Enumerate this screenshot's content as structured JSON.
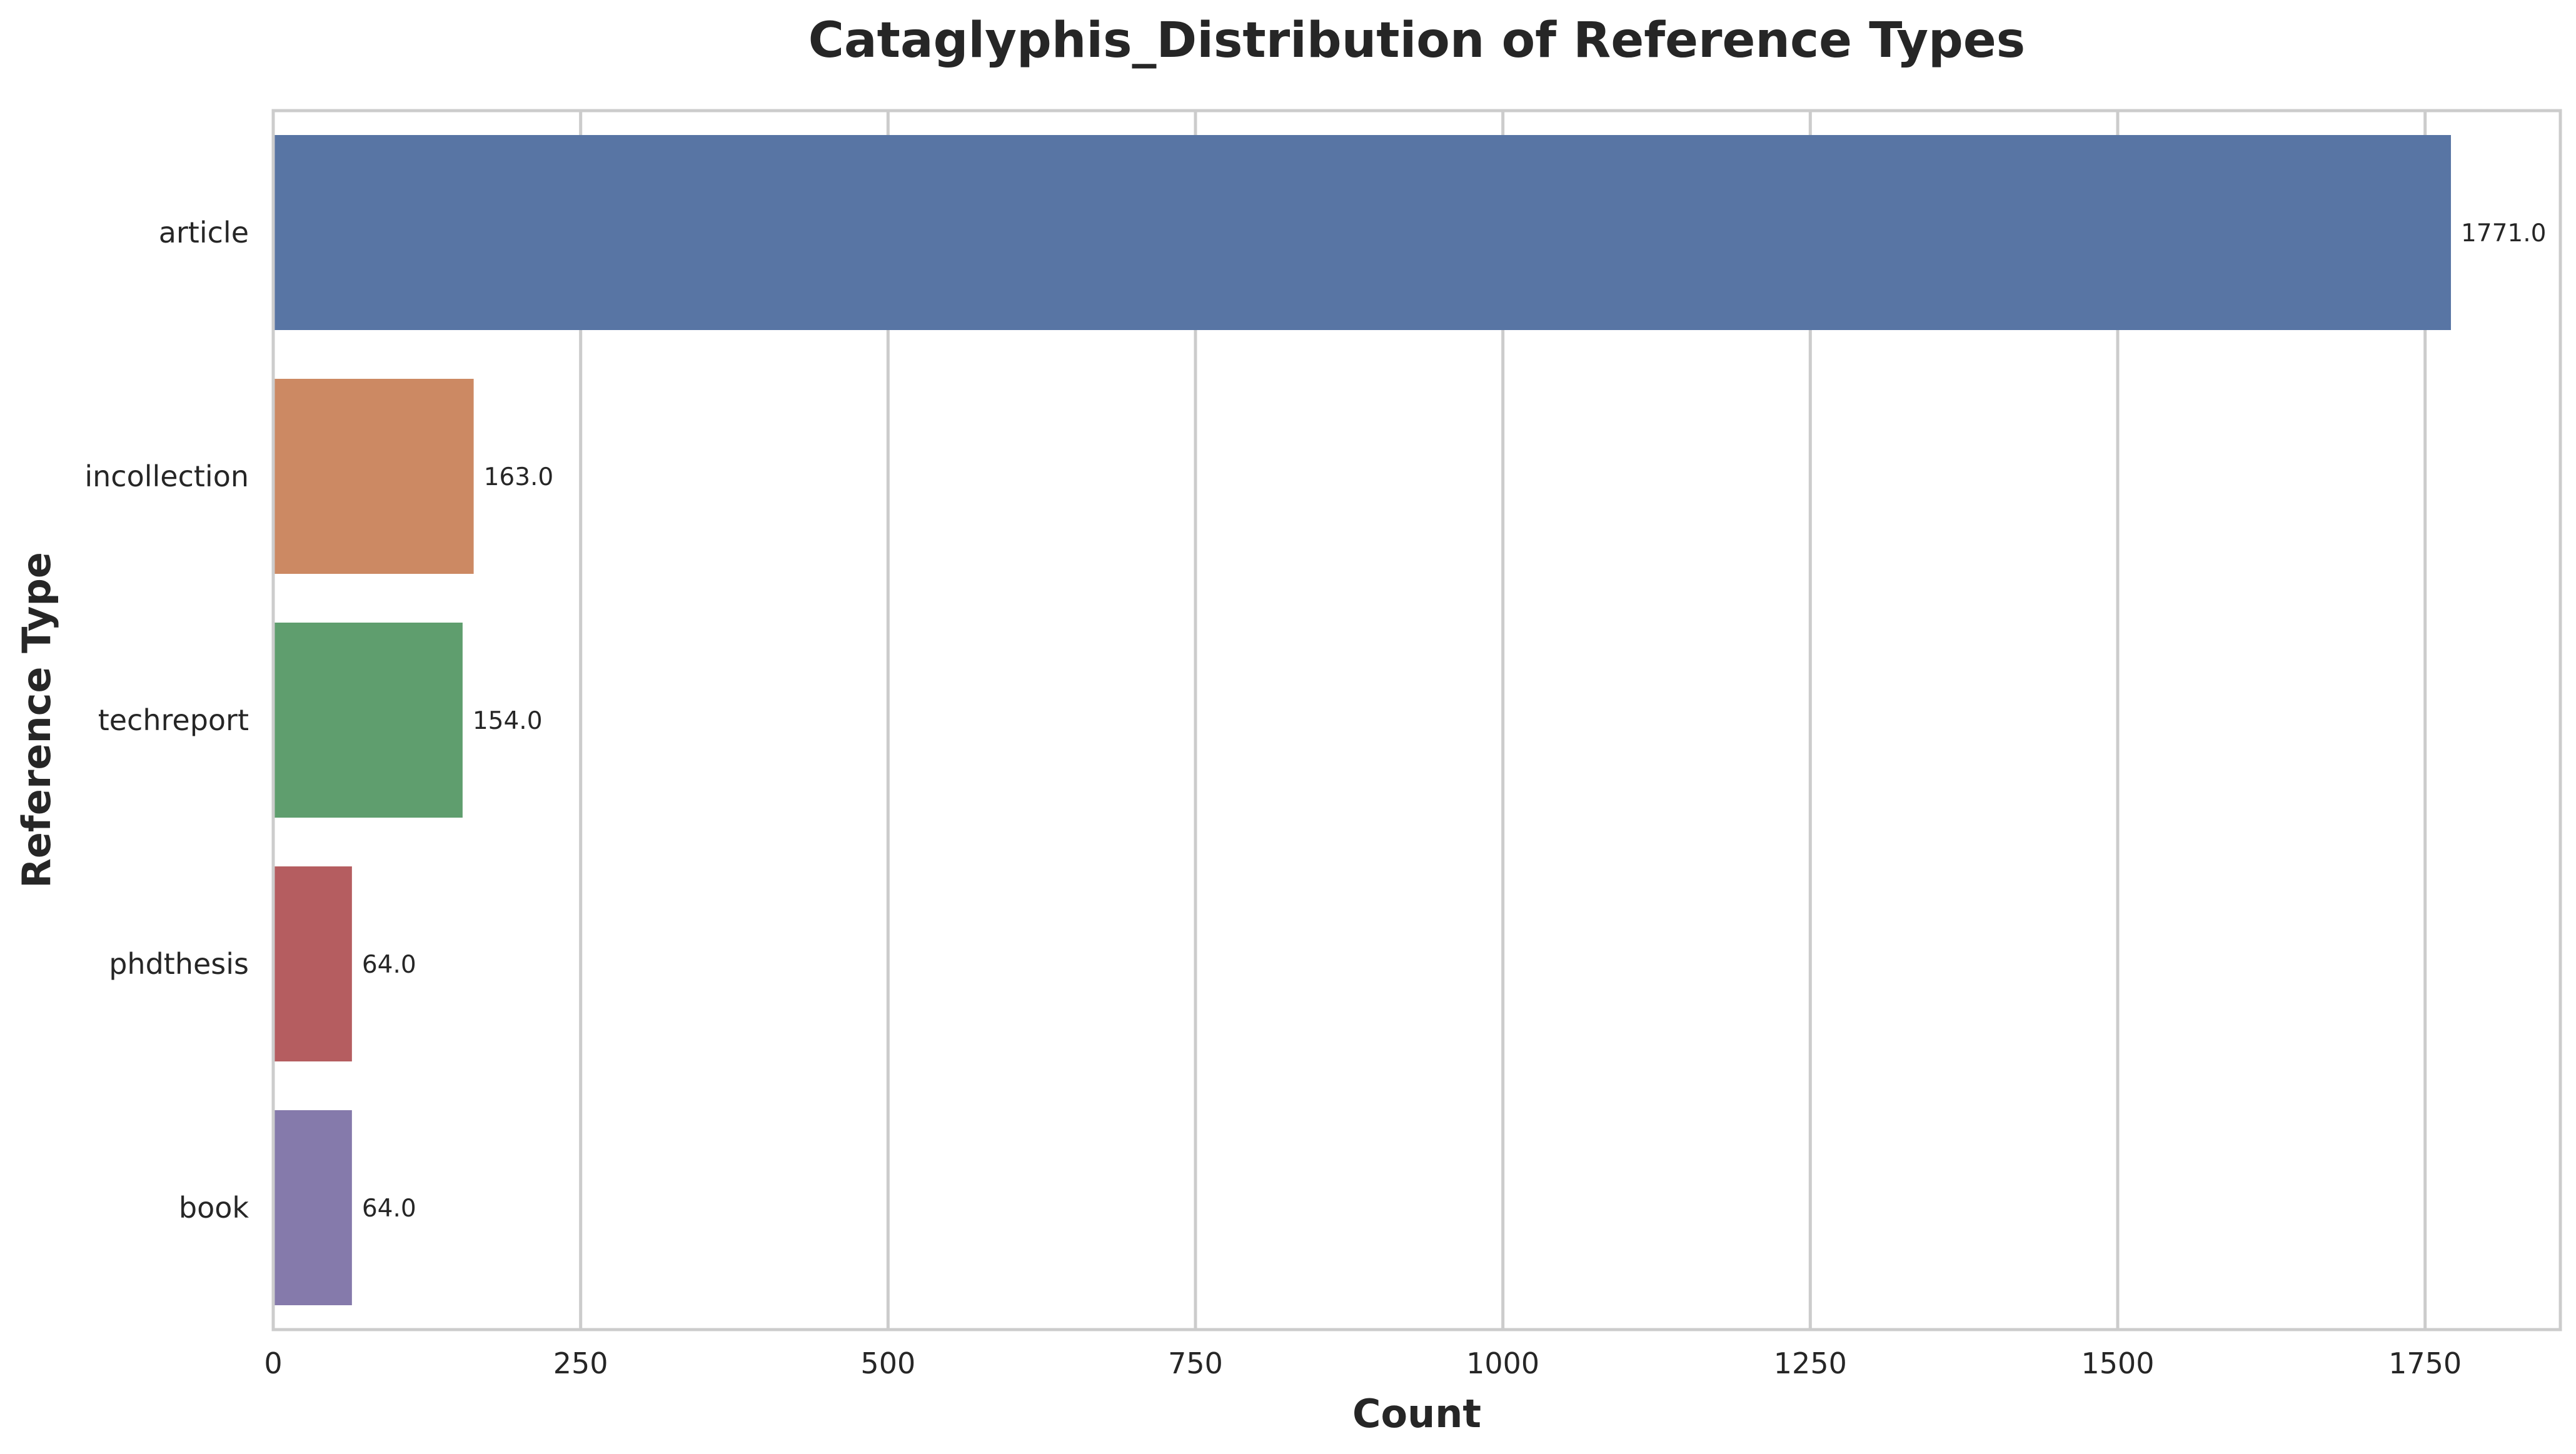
{
  "chart_data": {
    "type": "bar",
    "orientation": "horizontal",
    "title": "Cataglyphis_Distribution of Reference Types",
    "xlabel": "Count",
    "ylabel": "Reference Type",
    "categories": [
      "article",
      "incollection",
      "techreport",
      "phdthesis",
      "book"
    ],
    "values": [
      1771.0,
      163.0,
      154.0,
      64.0,
      64.0
    ],
    "data_labels": [
      "1771.0",
      "163.0",
      "154.0",
      "64.0",
      "64.0"
    ],
    "colors": [
      "#5875a4",
      "#cc8963",
      "#5f9e6e",
      "#b55d60",
      "#857aab"
    ],
    "xlim": [
      0,
      1860
    ],
    "xticks": [
      0,
      250,
      500,
      750,
      1000,
      1250,
      1500,
      1750
    ],
    "xtick_labels": [
      "0",
      "250",
      "500",
      "750",
      "1000",
      "1250",
      "1500",
      "1750"
    ],
    "grid": "vertical",
    "legend": "none"
  }
}
